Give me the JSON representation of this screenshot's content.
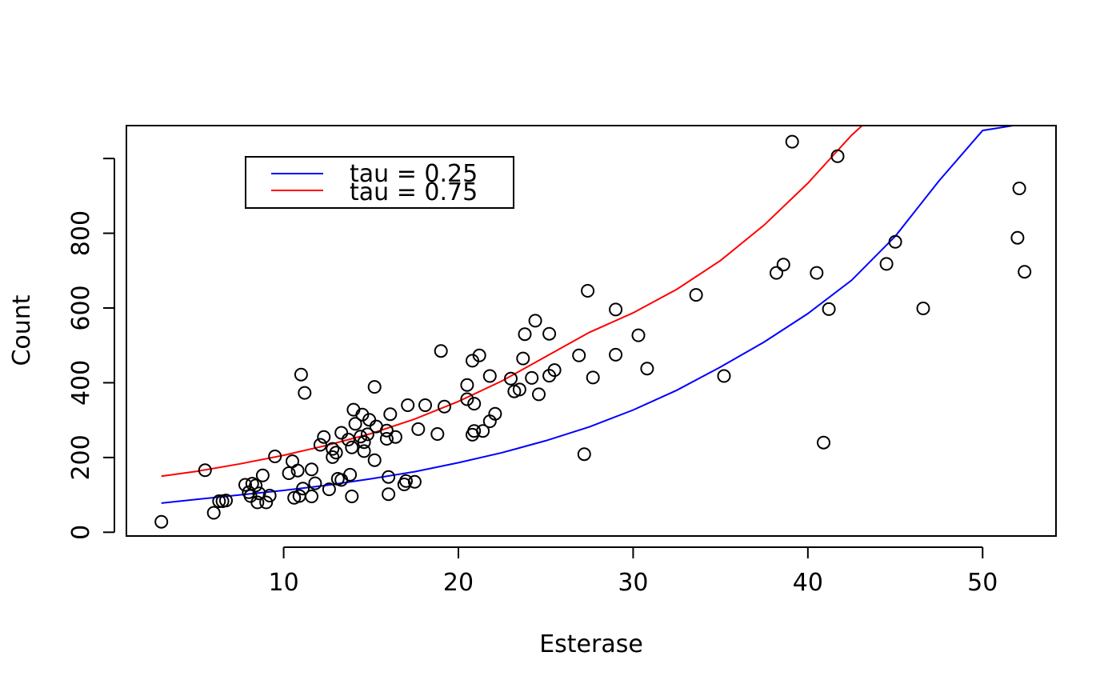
{
  "chart_data": {
    "type": "scatter",
    "title": "",
    "xlabel": "Esterase",
    "ylabel": "Count",
    "xlim": [
      1,
      54.2
    ],
    "ylim": [
      -10,
      1088
    ],
    "x_ticks": [
      10,
      20,
      30,
      40,
      50
    ],
    "y_ticks": [
      0,
      200,
      400,
      600,
      800,
      1000
    ],
    "y_tick_labels": [
      "0",
      "200",
      "400",
      "600",
      "800",
      ""
    ],
    "grid": false,
    "legend_position": "top-left",
    "points": [
      [
        3.0,
        28
      ],
      [
        5.5,
        166
      ],
      [
        6.0,
        52
      ],
      [
        6.3,
        83
      ],
      [
        6.5,
        83
      ],
      [
        6.7,
        85
      ],
      [
        7.8,
        127
      ],
      [
        8.0,
        107
      ],
      [
        8.1,
        97
      ],
      [
        8.2,
        130
      ],
      [
        8.4,
        125
      ],
      [
        8.5,
        80
      ],
      [
        8.6,
        104
      ],
      [
        8.8,
        152
      ],
      [
        9.0,
        80
      ],
      [
        9.2,
        98
      ],
      [
        9.5,
        203
      ],
      [
        10.3,
        158
      ],
      [
        10.5,
        190
      ],
      [
        10.6,
        92
      ],
      [
        10.8,
        165
      ],
      [
        10.9,
        97
      ],
      [
        11.0,
        422
      ],
      [
        11.1,
        117
      ],
      [
        11.2,
        373
      ],
      [
        11.6,
        168
      ],
      [
        11.6,
        96
      ],
      [
        11.8,
        131
      ],
      [
        12.1,
        234
      ],
      [
        12.3,
        255
      ],
      [
        12.6,
        115
      ],
      [
        12.8,
        223
      ],
      [
        12.8,
        201
      ],
      [
        13.0,
        213
      ],
      [
        13.1,
        143
      ],
      [
        13.3,
        140
      ],
      [
        13.3,
        266
      ],
      [
        13.7,
        248
      ],
      [
        13.8,
        154
      ],
      [
        13.9,
        227
      ],
      [
        13.9,
        96
      ],
      [
        14.0,
        328
      ],
      [
        14.1,
        290
      ],
      [
        14.4,
        256
      ],
      [
        14.5,
        315
      ],
      [
        14.6,
        241
      ],
      [
        14.6,
        217
      ],
      [
        14.8,
        262
      ],
      [
        14.9,
        301
      ],
      [
        15.2,
        389
      ],
      [
        15.2,
        193
      ],
      [
        15.3,
        283
      ],
      [
        15.9,
        272
      ],
      [
        15.9,
        250
      ],
      [
        16.0,
        148
      ],
      [
        16.0,
        102
      ],
      [
        16.1,
        316
      ],
      [
        16.4,
        255
      ],
      [
        16.9,
        128
      ],
      [
        17.0,
        137
      ],
      [
        17.1,
        340
      ],
      [
        17.5,
        135
      ],
      [
        17.7,
        276
      ],
      [
        18.1,
        340
      ],
      [
        18.8,
        263
      ],
      [
        19.0,
        485
      ],
      [
        19.2,
        336
      ],
      [
        20.5,
        394
      ],
      [
        20.5,
        356
      ],
      [
        20.8,
        459
      ],
      [
        20.8,
        261
      ],
      [
        20.9,
        271
      ],
      [
        20.9,
        344
      ],
      [
        21.2,
        473
      ],
      [
        21.4,
        271
      ],
      [
        21.8,
        418
      ],
      [
        21.8,
        297
      ],
      [
        22.1,
        317
      ],
      [
        23.0,
        411
      ],
      [
        23.2,
        377
      ],
      [
        23.5,
        382
      ],
      [
        23.7,
        465
      ],
      [
        23.8,
        530
      ],
      [
        24.2,
        413
      ],
      [
        24.4,
        566
      ],
      [
        24.6,
        369
      ],
      [
        25.2,
        419
      ],
      [
        25.2,
        531
      ],
      [
        25.5,
        434
      ],
      [
        26.9,
        473
      ],
      [
        27.2,
        209
      ],
      [
        27.4,
        646
      ],
      [
        27.7,
        414
      ],
      [
        29.0,
        596
      ],
      [
        29.0,
        475
      ],
      [
        30.3,
        527
      ],
      [
        30.8,
        438
      ],
      [
        33.6,
        635
      ],
      [
        35.2,
        418
      ],
      [
        38.2,
        694
      ],
      [
        38.6,
        716
      ],
      [
        39.1,
        1045
      ],
      [
        40.5,
        694
      ],
      [
        40.9,
        240
      ],
      [
        41.2,
        597
      ],
      [
        41.7,
        1006
      ],
      [
        44.5,
        718
      ],
      [
        45.0,
        777
      ],
      [
        46.6,
        599
      ],
      [
        52.0,
        788
      ],
      [
        52.1,
        920
      ],
      [
        52.4,
        697
      ]
    ],
    "series": [
      {
        "name": "tau = 0.25",
        "color": "#0000ff",
        "x": [
          3.0,
          5.0,
          7.5,
          10.0,
          12.5,
          15.0,
          17.5,
          20.0,
          22.5,
          25.0,
          27.5,
          30.0,
          32.5,
          35.0,
          37.5,
          40.0,
          42.5,
          45.0,
          47.5,
          50.0,
          52.3
        ],
        "y": [
          78,
          88,
          100,
          112,
          126,
          143,
          162,
          186,
          213,
          245,
          282,
          327,
          380,
          442,
          509,
          585,
          674,
          792,
          940,
          1075,
          1092
        ]
      },
      {
        "name": "tau = 0.75",
        "color": "#ff0000",
        "x": [
          3.0,
          5.0,
          7.5,
          10.0,
          12.5,
          15.0,
          17.5,
          20.0,
          22.5,
          25.0,
          27.5,
          30.0,
          32.5,
          35.0,
          37.5,
          40.0,
          42.5,
          43.2
        ],
        "y": [
          150,
          163,
          183,
          206,
          233,
          264,
          303,
          350,
          405,
          470,
          535,
          587,
          650,
          727,
          822,
          934,
          1062,
          1092
        ]
      }
    ]
  }
}
